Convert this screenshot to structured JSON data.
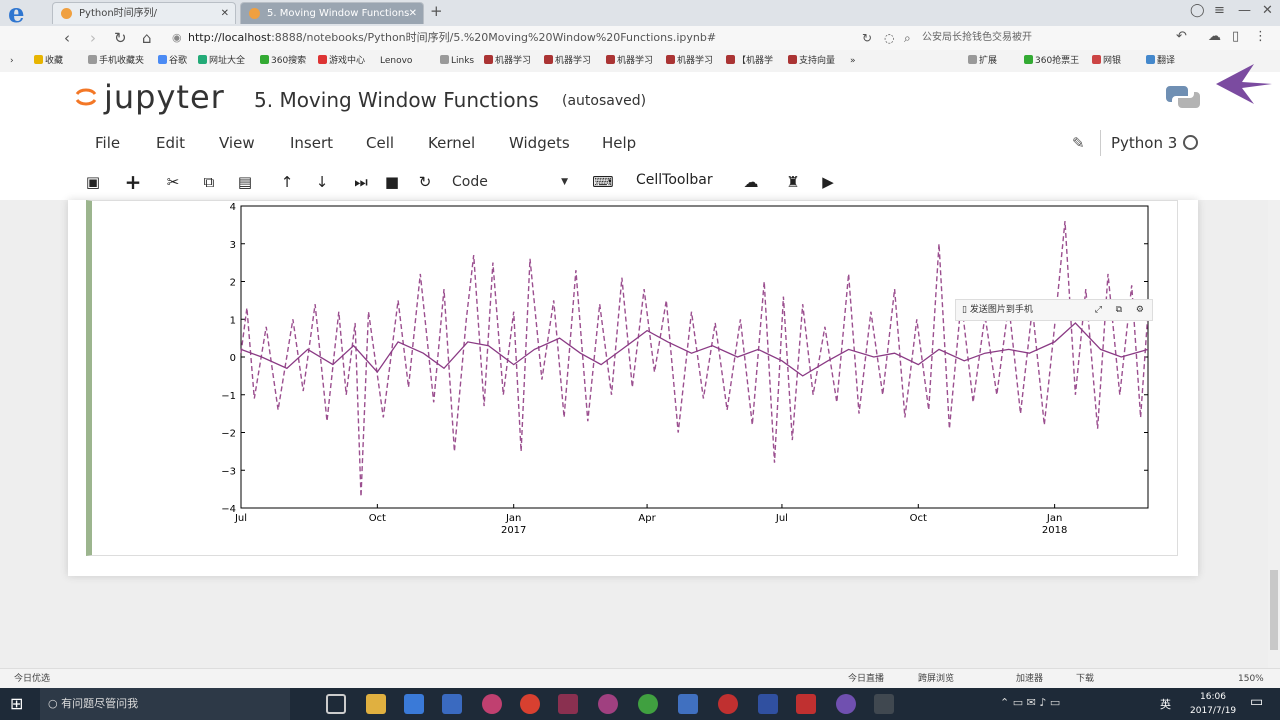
{
  "browser": {
    "tabs": [
      {
        "label": "Python时间序列/"
      },
      {
        "label": "5. Moving Window Functions"
      }
    ],
    "new_tab": "+",
    "url_host": "http://localhost",
    "url_rest": ":8888/notebooks/Python时间序列/5.%20Moving%20Window%20Functions.ipynb#",
    "search_text": "公安局长抢钱色交易被开",
    "bookmarks": [
      "收藏",
      "手机收藏夹",
      "谷歌",
      "网址大全",
      "360搜索",
      "游戏中心",
      "Lenovo",
      "Links",
      "机器学习",
      "机器学习",
      "机器学习",
      "机器学习",
      "【机器学",
      "支持向量"
    ],
    "bookmarks_right": [
      "扩展",
      "360抢票王",
      "网银",
      "翻译"
    ]
  },
  "jupyter": {
    "logo_text": "jupyter",
    "notebook_title": "5. Moving Window Functions",
    "autosave_status": "(autosaved)",
    "menu": [
      "File",
      "Edit",
      "View",
      "Insert",
      "Cell",
      "Kernel",
      "Widgets",
      "Help"
    ],
    "kernel_name": "Python 3",
    "cell_type": "Code",
    "cell_toolbar_label": "CellToolbar",
    "popup_label": "发送图片到手机"
  },
  "chart_data": {
    "type": "line",
    "title": "",
    "xlabel": "",
    "ylabel": "",
    "ylim": [
      -4,
      4
    ],
    "yticks": [
      "4",
      "3",
      "2",
      "1",
      "0",
      "−1",
      "−2",
      "−3",
      "−4"
    ],
    "xticks": [
      {
        "label": "Jul",
        "sub": ""
      },
      {
        "label": "Oct",
        "sub": ""
      },
      {
        "label": "Jan",
        "sub": "2017"
      },
      {
        "label": "Apr",
        "sub": ""
      },
      {
        "label": "Jul",
        "sub": ""
      },
      {
        "label": "Oct",
        "sub": ""
      },
      {
        "label": "Jan",
        "sub": "2018"
      }
    ],
    "x_range": [
      "2016-07-01",
      "2018-03-05"
    ],
    "series": [
      {
        "style": "dashed",
        "color": "#9b4f8f",
        "points": [
          [
            "2016-07-01",
            0.1
          ],
          [
            "2016-07-05",
            1.3
          ],
          [
            "2016-07-10",
            -1.1
          ],
          [
            "2016-07-18",
            0.8
          ],
          [
            "2016-07-26",
            -1.4
          ],
          [
            "2016-08-05",
            1.0
          ],
          [
            "2016-08-12",
            -0.9
          ],
          [
            "2016-08-20",
            1.4
          ],
          [
            "2016-08-28",
            -1.7
          ],
          [
            "2016-09-05",
            1.2
          ],
          [
            "2016-09-10",
            -1.0
          ],
          [
            "2016-09-16",
            0.9
          ],
          [
            "2016-09-20",
            -3.7
          ],
          [
            "2016-09-25",
            1.2
          ],
          [
            "2016-10-05",
            -1.6
          ],
          [
            "2016-10-15",
            1.5
          ],
          [
            "2016-10-22",
            -0.8
          ],
          [
            "2016-10-30",
            2.2
          ],
          [
            "2016-11-08",
            -1.2
          ],
          [
            "2016-11-15",
            1.8
          ],
          [
            "2016-11-22",
            -2.5
          ],
          [
            "2016-11-30",
            1.0
          ],
          [
            "2016-12-05",
            2.7
          ],
          [
            "2016-12-12",
            -1.3
          ],
          [
            "2016-12-18",
            2.5
          ],
          [
            "2016-12-25",
            -1.0
          ],
          [
            "2017-01-01",
            1.2
          ],
          [
            "2017-01-06",
            -2.5
          ],
          [
            "2017-01-12",
            2.6
          ],
          [
            "2017-01-20",
            -0.6
          ],
          [
            "2017-01-28",
            1.5
          ],
          [
            "2017-02-04",
            -1.6
          ],
          [
            "2017-02-12",
            2.3
          ],
          [
            "2017-02-20",
            -1.7
          ],
          [
            "2017-02-28",
            1.4
          ],
          [
            "2017-03-08",
            -1.0
          ],
          [
            "2017-03-15",
            2.1
          ],
          [
            "2017-03-22",
            -0.8
          ],
          [
            "2017-03-30",
            1.8
          ],
          [
            "2017-04-06",
            -0.4
          ],
          [
            "2017-04-14",
            1.5
          ],
          [
            "2017-04-22",
            -2.0
          ],
          [
            "2017-05-01",
            1.2
          ],
          [
            "2017-05-09",
            -1.1
          ],
          [
            "2017-05-17",
            0.9
          ],
          [
            "2017-05-25",
            -1.4
          ],
          [
            "2017-06-03",
            1.0
          ],
          [
            "2017-06-11",
            -1.8
          ],
          [
            "2017-06-19",
            2.0
          ],
          [
            "2017-06-26",
            -2.8
          ],
          [
            "2017-07-02",
            1.6
          ],
          [
            "2017-07-08",
            -2.2
          ],
          [
            "2017-07-15",
            1.4
          ],
          [
            "2017-07-22",
            -1.0
          ],
          [
            "2017-07-30",
            0.8
          ],
          [
            "2017-08-07",
            -1.2
          ],
          [
            "2017-08-15",
            2.2
          ],
          [
            "2017-08-22",
            -1.5
          ],
          [
            "2017-08-30",
            1.2
          ],
          [
            "2017-09-07",
            -1.0
          ],
          [
            "2017-09-15",
            1.8
          ],
          [
            "2017-09-22",
            -1.6
          ],
          [
            "2017-09-30",
            1.0
          ],
          [
            "2017-10-08",
            -1.4
          ],
          [
            "2017-10-15",
            3.0
          ],
          [
            "2017-10-22",
            -1.9
          ],
          [
            "2017-10-30",
            1.5
          ],
          [
            "2017-11-07",
            -1.2
          ],
          [
            "2017-11-15",
            1.1
          ],
          [
            "2017-11-23",
            -1.0
          ],
          [
            "2017-12-01",
            1.4
          ],
          [
            "2017-12-09",
            -1.5
          ],
          [
            "2017-12-17",
            1.3
          ],
          [
            "2017-12-25",
            -1.8
          ],
          [
            "2018-01-02",
            1.2
          ],
          [
            "2018-01-08",
            3.6
          ],
          [
            "2018-01-15",
            -1.0
          ],
          [
            "2018-01-22",
            1.8
          ],
          [
            "2018-01-30",
            -1.9
          ],
          [
            "2018-02-06",
            2.2
          ],
          [
            "2018-02-14",
            -1.0
          ],
          [
            "2018-02-22",
            1.9
          ],
          [
            "2018-02-28",
            -1.6
          ],
          [
            "2018-03-05",
            1.2
          ]
        ]
      },
      {
        "style": "solid",
        "color": "#8a3a84",
        "points": [
          [
            "2016-07-01",
            0.2
          ],
          [
            "2016-07-15",
            0.0
          ],
          [
            "2016-08-01",
            -0.3
          ],
          [
            "2016-08-15",
            0.2
          ],
          [
            "2016-09-01",
            -0.2
          ],
          [
            "2016-09-15",
            0.3
          ],
          [
            "2016-10-01",
            -0.4
          ],
          [
            "2016-10-15",
            0.4
          ],
          [
            "2016-11-01",
            0.1
          ],
          [
            "2016-11-15",
            -0.3
          ],
          [
            "2016-12-01",
            0.4
          ],
          [
            "2016-12-15",
            0.3
          ],
          [
            "2017-01-01",
            -0.2
          ],
          [
            "2017-01-15",
            0.2
          ],
          [
            "2017-02-01",
            0.5
          ],
          [
            "2017-02-15",
            0.1
          ],
          [
            "2017-03-01",
            -0.2
          ],
          [
            "2017-03-15",
            0.2
          ],
          [
            "2017-04-01",
            0.7
          ],
          [
            "2017-04-15",
            0.4
          ],
          [
            "2017-05-01",
            0.1
          ],
          [
            "2017-05-15",
            0.3
          ],
          [
            "2017-06-01",
            0.0
          ],
          [
            "2017-06-15",
            0.2
          ],
          [
            "2017-07-01",
            -0.1
          ],
          [
            "2017-07-15",
            -0.5
          ],
          [
            "2017-08-01",
            -0.1
          ],
          [
            "2017-08-15",
            0.2
          ],
          [
            "2017-09-01",
            0.0
          ],
          [
            "2017-09-15",
            0.1
          ],
          [
            "2017-10-01",
            -0.2
          ],
          [
            "2017-10-15",
            0.2
          ],
          [
            "2017-11-01",
            -0.1
          ],
          [
            "2017-11-15",
            0.1
          ],
          [
            "2017-12-01",
            0.2
          ],
          [
            "2017-12-15",
            0.1
          ],
          [
            "2018-01-01",
            0.4
          ],
          [
            "2018-01-15",
            0.9
          ],
          [
            "2018-02-01",
            0.2
          ],
          [
            "2018-02-15",
            0.0
          ],
          [
            "2018-03-05",
            0.2
          ]
        ]
      }
    ]
  },
  "statusbar": {
    "left": "今日优选",
    "right": [
      "今日直播",
      "跨屏浏览",
      "加速器",
      "下载",
      "150%"
    ]
  },
  "taskbar": {
    "search_text": "有问题尽管问我",
    "time": "16:06",
    "date": "2017/7/19",
    "ime": "英"
  }
}
